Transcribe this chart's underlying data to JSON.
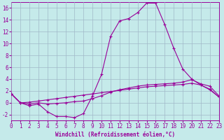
{
  "xlabel": "Windchill (Refroidissement éolien,°C)",
  "bg_color": "#c5eaea",
  "line_color": "#990099",
  "grid_color": "#a0b8c8",
  "xlim": [
    0,
    23
  ],
  "ylim": [
    -3,
    17
  ],
  "yticks": [
    -2,
    0,
    2,
    4,
    6,
    8,
    10,
    12,
    14,
    16
  ],
  "xticks": [
    0,
    1,
    2,
    3,
    4,
    5,
    6,
    7,
    8,
    9,
    10,
    11,
    12,
    13,
    14,
    15,
    16,
    17,
    18,
    19,
    20,
    21,
    22,
    23
  ],
  "line1_x": [
    0,
    1,
    2,
    3,
    4,
    5,
    6,
    7,
    8,
    9,
    10,
    11,
    12,
    13,
    14,
    15,
    16,
    17,
    18,
    19,
    20,
    21,
    22,
    23
  ],
  "line1_y": [
    1.5,
    0.0,
    -0.5,
    -0.2,
    -1.5,
    -2.3,
    -2.3,
    -2.5,
    -1.8,
    1.2,
    4.8,
    11.2,
    13.8,
    14.2,
    15.2,
    16.8,
    16.8,
    13.2,
    9.2,
    5.7,
    4.0,
    3.0,
    2.2,
    1.0
  ],
  "line2_x": [
    0,
    1,
    2,
    3,
    4,
    5,
    6,
    7,
    8,
    9,
    10,
    11,
    12,
    13,
    14,
    15,
    16,
    17,
    18,
    19,
    20,
    21,
    22,
    23
  ],
  "line2_y": [
    1.5,
    0.0,
    -0.2,
    0.0,
    -0.2,
    -0.1,
    0.0,
    0.2,
    0.3,
    0.7,
    1.2,
    1.8,
    2.2,
    2.5,
    2.8,
    3.0,
    3.1,
    3.2,
    3.3,
    3.5,
    3.9,
    3.2,
    2.8,
    1.2
  ],
  "line3_x": [
    0,
    1,
    2,
    3,
    4,
    5,
    6,
    7,
    8,
    9,
    10,
    11,
    12,
    13,
    14,
    15,
    16,
    17,
    18,
    19,
    20,
    21,
    22,
    23
  ],
  "line3_y": [
    1.5,
    0.0,
    0.1,
    0.3,
    0.5,
    0.7,
    0.9,
    1.1,
    1.3,
    1.5,
    1.7,
    1.9,
    2.1,
    2.3,
    2.5,
    2.7,
    2.8,
    2.9,
    3.0,
    3.1,
    3.3,
    3.0,
    2.3,
    1.0
  ],
  "tick_fontsize": 5.5,
  "xlabel_fontsize": 5.5
}
